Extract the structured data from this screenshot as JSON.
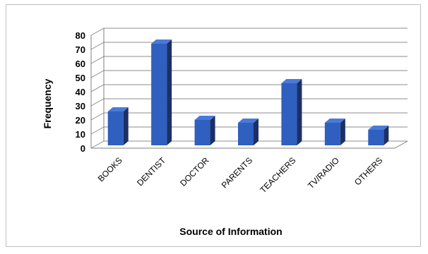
{
  "chart_data": {
    "type": "bar",
    "title": "",
    "xlabel": "Source of Information",
    "ylabel": "Frequency",
    "categories": [
      "BOOKS",
      "DENTIST",
      "DOCTOR",
      "PARENTS",
      "TEACHERS",
      "TV/RADIO",
      "OTHERS"
    ],
    "values": [
      25,
      73,
      19,
      17,
      45,
      17,
      12
    ],
    "ylim": [
      0,
      80
    ],
    "yticks": [
      0,
      10,
      20,
      30,
      40,
      50,
      60,
      70,
      80
    ],
    "grid": true,
    "legend": "none",
    "bar_style": "3d",
    "colors": {
      "bar_front": "#2f5fbf",
      "bar_top": "#4a7ad8",
      "bar_side": "#1c2f66",
      "grid": "#8c8c8c",
      "axis": "#7f7f7f"
    }
  }
}
